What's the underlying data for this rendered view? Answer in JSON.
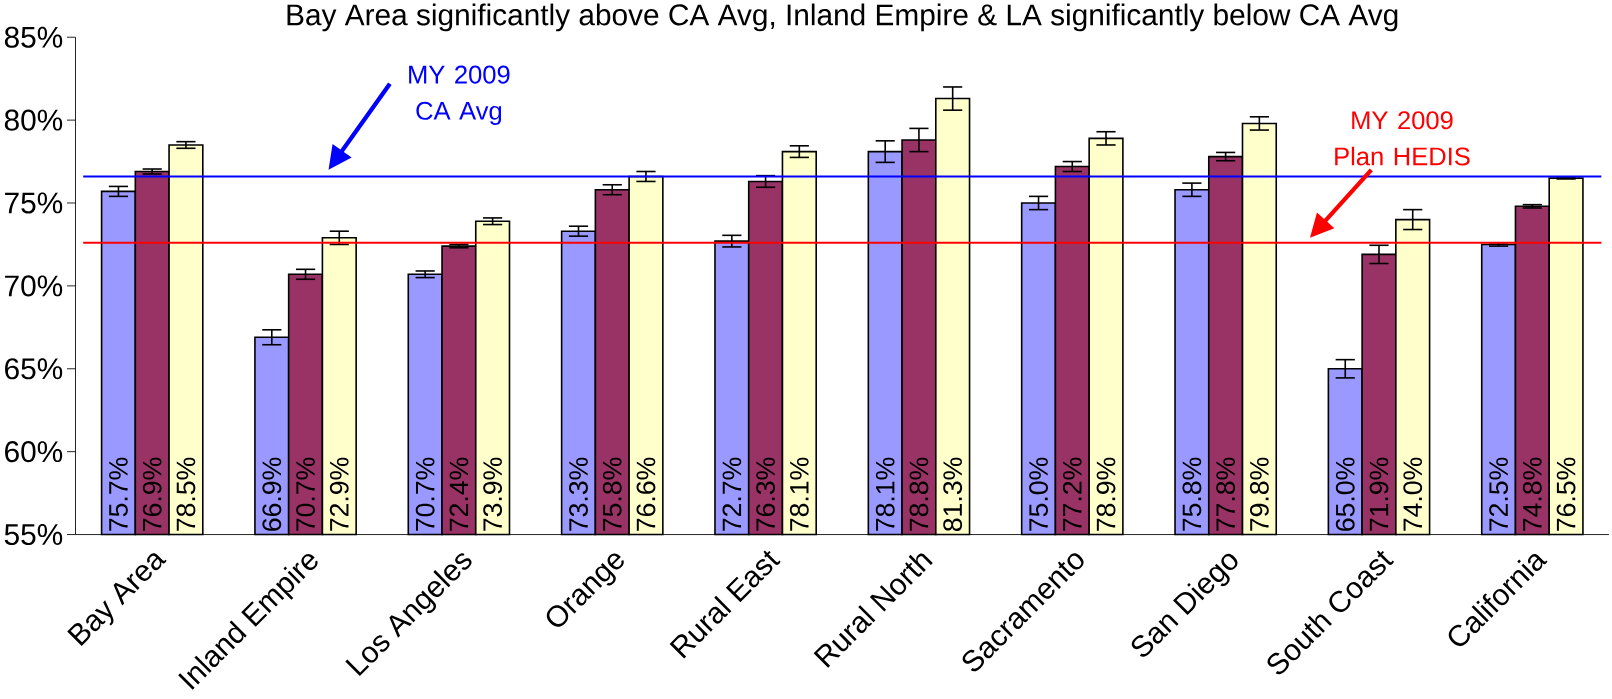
{
  "chart_data": {
    "type": "bar",
    "title": "Bay Area significantly above CA Avg, Inland Empire & LA significantly below CA Avg",
    "categories": [
      "Bay Area",
      "Inland Empire",
      "Los Angeles",
      "Orange",
      "Rural East",
      "Rural North",
      "Sacramento",
      "San Diego",
      "South Coast",
      "California"
    ],
    "series": [
      {
        "color": "#9999ff",
        "values": [
          75.7,
          66.9,
          70.7,
          73.3,
          72.7,
          78.1,
          75.0,
          75.8,
          65.0,
          72.5
        ],
        "errors": [
          0.3,
          0.45,
          0.2,
          0.3,
          0.35,
          0.65,
          0.4,
          0.4,
          0.55,
          0.1
        ],
        "value_labels": [
          "75.7%",
          "66.9%",
          "70.7%",
          "73.3%",
          "72.7%",
          "78.1%",
          "75.0%",
          "75.8%",
          "65.0%",
          "72.5%"
        ]
      },
      {
        "color": "#993366",
        "values": [
          76.9,
          70.7,
          72.4,
          75.8,
          76.3,
          78.8,
          77.2,
          77.8,
          71.9,
          74.8
        ],
        "errors": [
          0.15,
          0.3,
          0.1,
          0.3,
          0.35,
          0.7,
          0.3,
          0.25,
          0.55,
          0.1
        ],
        "value_labels": [
          "76.9%",
          "70.7%",
          "72.4%",
          "75.8%",
          "76.3%",
          "78.8%",
          "77.2%",
          "77.8%",
          "71.9%",
          "74.8%"
        ]
      },
      {
        "color": "#ffffcc",
        "values": [
          78.5,
          72.9,
          73.9,
          76.6,
          78.1,
          81.3,
          78.9,
          79.8,
          74.0,
          76.5
        ],
        "errors": [
          0.2,
          0.4,
          0.2,
          0.3,
          0.35,
          0.7,
          0.4,
          0.4,
          0.6,
          0.05
        ],
        "value_labels": [
          "78.5%",
          "72.9%",
          "73.9%",
          "76.6%",
          "78.1%",
          "81.3%",
          "78.9%",
          "79.8%",
          "74.0%",
          "76.5%"
        ]
      }
    ],
    "ylim": [
      55,
      85
    ],
    "yticks": [
      {
        "value": 55,
        "label": "55%"
      },
      {
        "value": 60,
        "label": "60%"
      },
      {
        "value": 65,
        "label": "65%"
      },
      {
        "value": 70,
        "label": "70%"
      },
      {
        "value": 75,
        "label": "75%"
      },
      {
        "value": 80,
        "label": "80%"
      },
      {
        "value": 85,
        "label": "85%"
      }
    ],
    "ref_lines": [
      {
        "axis": "y",
        "value": 76.6,
        "label": "MY 2009 CA Avg",
        "color": "#0000ff"
      },
      {
        "axis": "y",
        "value": 72.6,
        "label": "MY 2009 Plan HEDIS",
        "color": "#ff0000"
      }
    ]
  }
}
